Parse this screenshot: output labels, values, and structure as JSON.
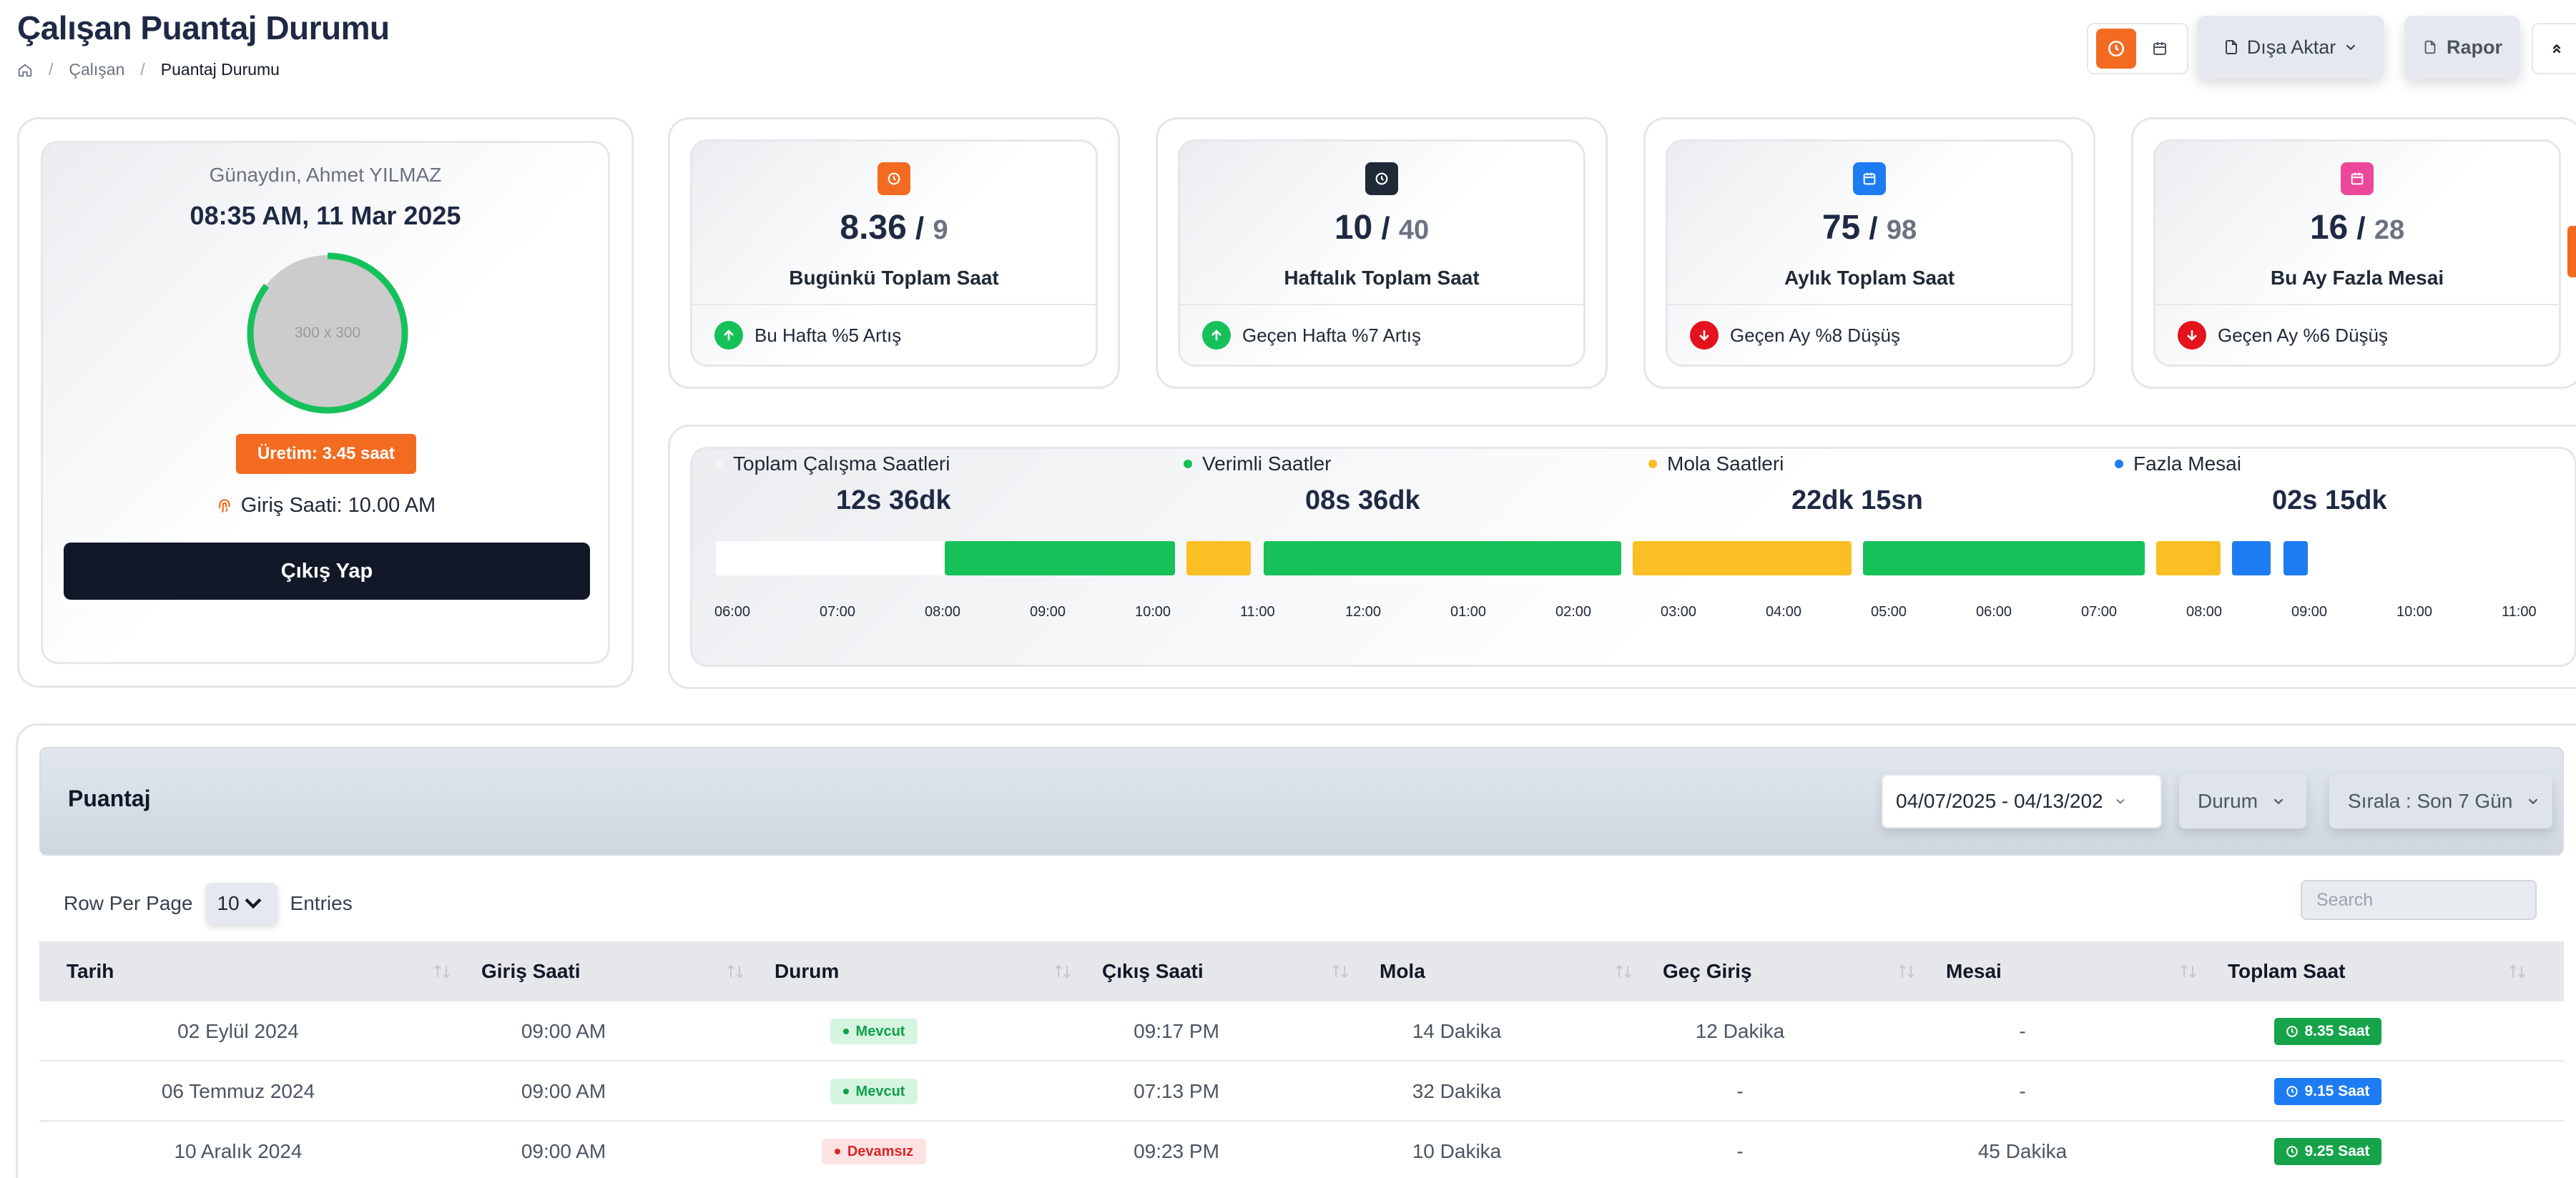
{
  "header": {
    "title": "Çalışan Puantaj Durumu",
    "breadcrumb": [
      "Çalışan",
      "Puantaj Durumu"
    ]
  },
  "actions": {
    "export_label": "Dışa Aktar",
    "report_label": "Rapor"
  },
  "profile": {
    "greeting": "Günaydın, Ahmet YILMAZ",
    "datetime": "08:35 AM, 11 Mar 2025",
    "avatar_placeholder": "300 x 300",
    "production": "Üretim: 3.45 saat",
    "entry_time": "Giriş Saati: 10.00 AM",
    "checkout_label": "Çıkış Yap"
  },
  "stats": [
    {
      "icon": "clock-icon",
      "color": "#f26b21",
      "value": "8.36",
      "total": "9",
      "label": "Bugünkü Toplam Saat",
      "trend": "up",
      "trend_text": "Bu Hafta %5 Artış"
    },
    {
      "icon": "clock-icon",
      "color": "#1f2937",
      "value": "10",
      "total": "40",
      "label": "Haftalık Toplam Saat",
      "trend": "up",
      "trend_text": "Geçen Hafta %7 Artış"
    },
    {
      "icon": "calendar-icon",
      "color": "#1d7cf2",
      "value": "75",
      "total": "98",
      "label": "Aylık Toplam Saat",
      "trend": "down",
      "trend_text": "Geçen Ay %8 Düşüş"
    },
    {
      "icon": "calendar-icon",
      "color": "#ec4899",
      "value": "16",
      "total": "28",
      "label": "Bu Ay Fazla Mesai",
      "trend": "down",
      "trend_text": "Geçen Ay %6 Düşüş"
    }
  ],
  "timeline": {
    "legend": [
      {
        "label": "Toplam Çalışma Saatleri",
        "value": "12s 36dk",
        "color": "#f3f4f6"
      },
      {
        "label": "Verimli Saatler",
        "value": "08s 36dk",
        "color": "#16c15a"
      },
      {
        "label": "Mola Saatleri",
        "value": "22dk 15sn",
        "color": "#fbbf24"
      },
      {
        "label": "Fazla Mesai",
        "value": "02s 15dk",
        "color": "#1d7cf2"
      }
    ],
    "ticks": [
      "06:00",
      "07:00",
      "08:00",
      "09:00",
      "10:00",
      "11:00",
      "12:00",
      "01:00",
      "02:00",
      "03:00",
      "04:00",
      "05:00",
      "06:00",
      "07:00",
      "08:00",
      "09:00",
      "10:00",
      "11:00"
    ]
  },
  "table": {
    "title": "Puantaj",
    "date_range": "04/07/2025 - 04/13/202",
    "status_filter": "Durum",
    "sort_filter": "Sırala : Son 7 Gün",
    "rows_per_page_label": "Row Per Page",
    "rows_per_page_value": "10",
    "entries_label": "Entries",
    "search_placeholder": "Search",
    "columns": [
      "Tarih",
      "Giriş Saati",
      "Durum",
      "Çıkış Saati",
      "Mola",
      "Geç Giriş",
      "Mesai",
      "Toplam Saat"
    ],
    "rows": [
      {
        "date": "02 Eylül 2024",
        "in": "09:00 AM",
        "status": "Mevcut",
        "status_type": "present",
        "out": "09:17 PM",
        "break": "14 Dakika",
        "late": "12 Dakika",
        "overtime": "-",
        "total": "8.35 Saat",
        "total_color": "#16a34a"
      },
      {
        "date": "06 Temmuz 2024",
        "in": "09:00 AM",
        "status": "Mevcut",
        "status_type": "present",
        "out": "07:13 PM",
        "break": "32 Dakika",
        "late": "-",
        "overtime": "-",
        "total": "9.15 Saat",
        "total_color": "#1d7cf2"
      },
      {
        "date": "10 Aralık 2024",
        "in": "09:00 AM",
        "status": "Devamsız",
        "status_type": "absent",
        "out": "09:23 PM",
        "break": "10 Dakika",
        "late": "-",
        "overtime": "45 Dakika",
        "total": "9.25 Saat",
        "total_color": "#16a34a"
      }
    ]
  }
}
